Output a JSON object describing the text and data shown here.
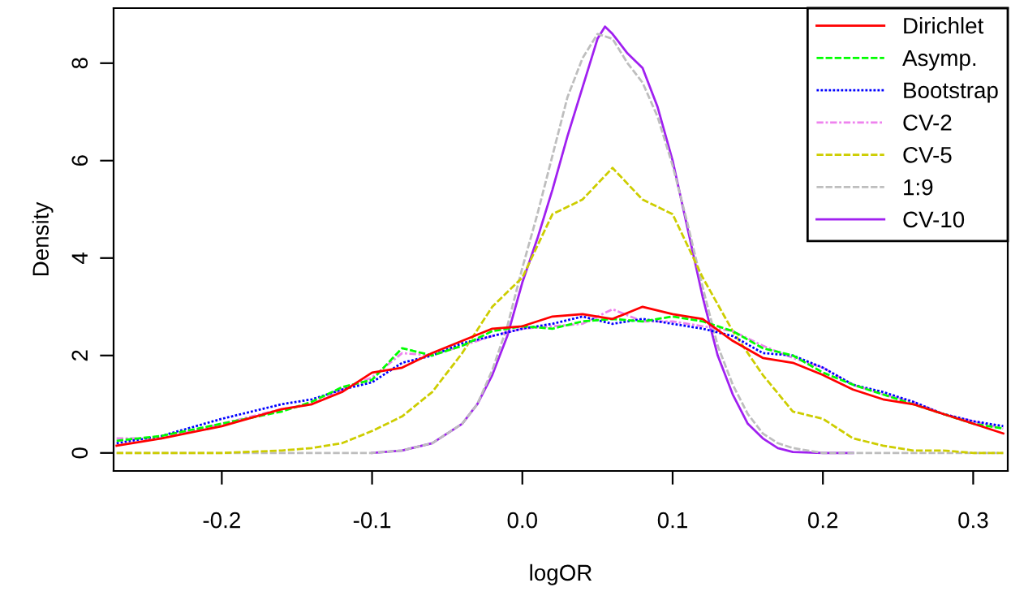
{
  "chart_data": {
    "type": "line",
    "xlabel": "logOR",
    "ylabel": "Density",
    "xlim": [
      -0.272,
      0.323
    ],
    "ylim": [
      -0.37,
      9.13
    ],
    "xticks": [
      -0.2,
      -0.1,
      {
        "value": 0,
        "label": "0.0"
      },
      0.1,
      0.2,
      0.3
    ],
    "yticks": [
      0,
      2,
      4,
      6,
      8
    ],
    "legend": "top right",
    "grid": false,
    "x": [
      -0.27,
      -0.24,
      -0.2,
      -0.16,
      -0.14,
      -0.12,
      -0.1,
      -0.08,
      -0.06,
      -0.04,
      -0.02,
      0.0,
      0.02,
      0.04,
      0.06,
      0.08,
      0.1,
      0.12,
      0.14,
      0.16,
      0.18,
      0.2,
      0.22,
      0.24,
      0.26,
      0.28,
      0.3,
      0.32
    ],
    "series": [
      {
        "name": "Dirichlet",
        "color": "#ff0000",
        "line_style": "solid",
        "values": [
          0.15,
          0.3,
          0.55,
          0.9,
          1.0,
          1.25,
          1.65,
          1.75,
          2.05,
          2.3,
          2.55,
          2.6,
          2.8,
          2.85,
          2.75,
          3.0,
          2.85,
          2.75,
          2.3,
          1.95,
          1.85,
          1.6,
          1.3,
          1.1,
          1.0,
          0.8,
          0.6,
          0.4
        ]
      },
      {
        "name": "Asymp.",
        "color": "#00ff00",
        "line_style": "dashed",
        "values": [
          0.25,
          0.35,
          0.6,
          0.85,
          1.05,
          1.35,
          1.5,
          2.15,
          2.0,
          2.2,
          2.5,
          2.6,
          2.55,
          2.7,
          2.75,
          2.7,
          2.8,
          2.7,
          2.5,
          2.15,
          2.0,
          1.65,
          1.4,
          1.2,
          1.0,
          0.8,
          0.6,
          0.5
        ]
      },
      {
        "name": "Bootstrap",
        "color": "#0000ff",
        "line_style": "dotted",
        "values": [
          0.2,
          0.35,
          0.7,
          1.0,
          1.1,
          1.3,
          1.45,
          1.85,
          2.0,
          2.25,
          2.4,
          2.55,
          2.65,
          2.8,
          2.65,
          2.75,
          2.65,
          2.55,
          2.4,
          2.05,
          2.0,
          1.75,
          1.4,
          1.25,
          1.05,
          0.8,
          0.65,
          0.55
        ]
      },
      {
        "name": "CV-2",
        "color": "#ee82ee",
        "line_style": "dashdot",
        "values": [
          0.3,
          0.3,
          0.6,
          0.9,
          1.0,
          1.3,
          1.55,
          2.05,
          2.0,
          2.2,
          2.4,
          2.55,
          2.6,
          2.65,
          2.95,
          2.7,
          2.7,
          2.6,
          2.5,
          2.2,
          1.95,
          1.75,
          1.4,
          1.2,
          1.05,
          0.8,
          0.65,
          0.5
        ]
      },
      {
        "name": "CV-5",
        "color": "#cdcd00",
        "line_style": "dashed",
        "values": [
          0.0,
          0.0,
          0.0,
          0.05,
          0.1,
          0.2,
          0.45,
          0.75,
          1.25,
          2.05,
          3.0,
          3.6,
          4.9,
          5.2,
          5.85,
          5.2,
          4.9,
          3.6,
          2.5,
          1.6,
          0.85,
          0.7,
          0.3,
          0.15,
          0.05,
          0.05,
          0.0,
          0.0
        ]
      },
      {
        "name": "1:9",
        "color": "#bebebe",
        "line_style": "dashed",
        "x": [
          -0.27,
          -0.1,
          -0.08,
          -0.06,
          -0.04,
          -0.03,
          -0.02,
          -0.01,
          0.0,
          0.01,
          0.02,
          0.03,
          0.04,
          0.05,
          0.06,
          0.07,
          0.08,
          0.09,
          0.1,
          0.11,
          0.12,
          0.13,
          0.14,
          0.15,
          0.16,
          0.17,
          0.18,
          0.2,
          0.32
        ],
        "values": [
          0.0,
          0.0,
          0.05,
          0.2,
          0.6,
          1.0,
          1.7,
          2.6,
          3.8,
          4.9,
          6.1,
          7.3,
          8.1,
          8.6,
          8.5,
          8.0,
          7.6,
          6.9,
          5.9,
          4.7,
          3.4,
          2.2,
          1.4,
          0.8,
          0.4,
          0.2,
          0.1,
          0.0,
          0.0
        ]
      },
      {
        "name": "CV-10",
        "color": "#a020f0",
        "line_style": "solid",
        "x": [
          -0.1,
          -0.08,
          -0.06,
          -0.04,
          -0.03,
          -0.02,
          -0.01,
          0.0,
          0.01,
          0.02,
          0.03,
          0.04,
          0.05,
          0.055,
          0.06,
          0.07,
          0.08,
          0.09,
          0.1,
          0.11,
          0.12,
          0.13,
          0.14,
          0.15,
          0.16,
          0.17,
          0.18,
          0.2,
          0.22
        ],
        "values": [
          0.0,
          0.05,
          0.2,
          0.6,
          1.0,
          1.6,
          2.4,
          3.5,
          4.4,
          5.4,
          6.5,
          7.5,
          8.5,
          8.75,
          8.6,
          8.2,
          7.9,
          7.1,
          6.0,
          4.6,
          3.2,
          2.0,
          1.2,
          0.6,
          0.3,
          0.1,
          0.02,
          0.0,
          0.0
        ]
      }
    ]
  }
}
